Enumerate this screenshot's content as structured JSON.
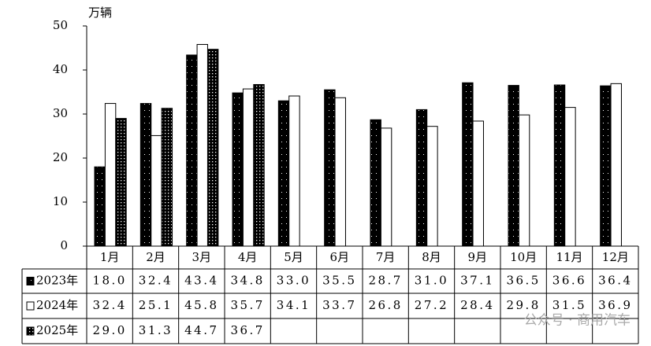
{
  "chart_data": {
    "type": "bar",
    "y_label": "万辆",
    "categories": [
      "1月",
      "2月",
      "3月",
      "4月",
      "5月",
      "6月",
      "7月",
      "8月",
      "9月",
      "10月",
      "11月",
      "12月"
    ],
    "series": [
      {
        "name": "2023年",
        "color": "#000000",
        "values": [
          18.0,
          32.4,
          43.4,
          34.8,
          33.0,
          35.5,
          28.7,
          31.0,
          37.1,
          36.5,
          36.6,
          36.4
        ],
        "value_labels": [
          "18.0",
          "32.4",
          "43.4",
          "34.8",
          "33.0",
          "35.5",
          "28.7",
          "31.0",
          "37.1",
          "36.5",
          "36.6",
          "36.4"
        ]
      },
      {
        "name": "2024年",
        "color": "#ffffff",
        "values": [
          32.4,
          25.1,
          45.8,
          35.7,
          34.1,
          33.7,
          26.8,
          27.2,
          28.4,
          29.8,
          31.5,
          36.9
        ],
        "value_labels": [
          "32.4",
          "25.1",
          "45.8",
          "35.7",
          "34.1",
          "33.7",
          "26.8",
          "27.2",
          "28.4",
          "29.8",
          "31.5",
          "36.9"
        ]
      },
      {
        "name": "2025年",
        "color": "#000000",
        "values": [
          29.0,
          31.3,
          44.7,
          36.7,
          null,
          null,
          null,
          null,
          null,
          null,
          null,
          null
        ],
        "value_labels": [
          "29.0",
          "31.3",
          "44.7",
          "36.7",
          null,
          null,
          null,
          null,
          null,
          null,
          null,
          null
        ]
      }
    ],
    "ylim": [
      0,
      50
    ],
    "yticks": [
      0,
      10,
      20,
      30,
      40,
      50
    ],
    "grid": false,
    "watermark": "公众号 · 商用汽车"
  }
}
